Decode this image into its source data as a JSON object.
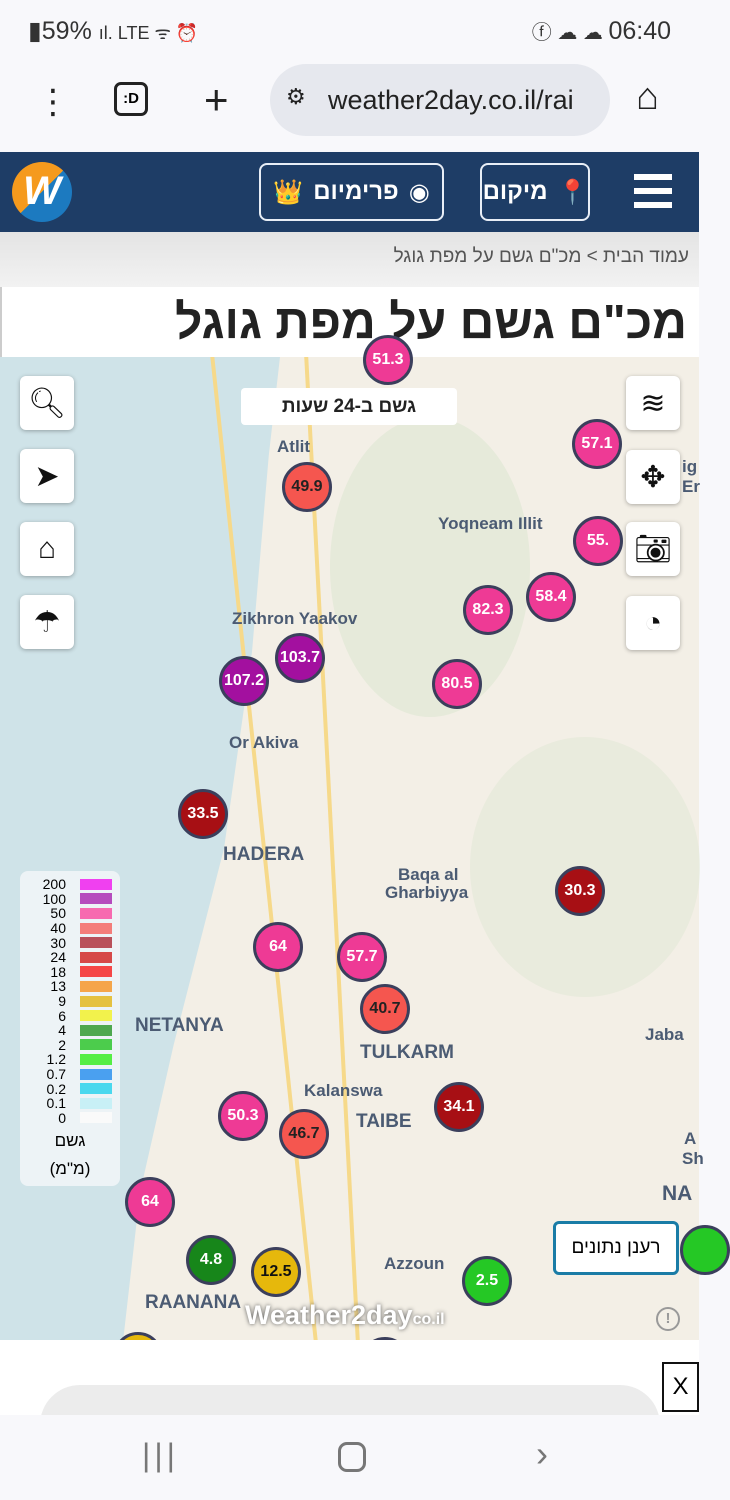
{
  "status": {
    "battery": "59%",
    "time": "06:40"
  },
  "browser": {
    "url": "weather2day.co.il/rai",
    "tab_icon": ":D"
  },
  "nav": {
    "location_label": "מיקום",
    "premium_label": "פרימיום",
    "logo_letter": "W"
  },
  "breadcrumb": {
    "home": "עמוד הבית",
    "separator": ">",
    "current": "מכ\"ם גשם על מפת גוגל"
  },
  "page_title": "מכ\"ם גשם על מפת גוגל",
  "map": {
    "period_label": "גשם ב-24 שעות",
    "refresh_label": "רענן נתונים",
    "watermark": "Weather2day",
    "watermark_suffix": "co.il",
    "places": [
      "Atlit",
      "Yoqneam Illit",
      "Zikhron Yaakov",
      "Or Akiva",
      "HADERA",
      "Baqa al",
      "Gharbiyya",
      "NETANYA",
      "TULKARM",
      "Kalanswa",
      "TAIBE",
      "Jaba",
      "RAANANA",
      "Azzoun",
      "NA",
      "ig",
      "Er",
      "A",
      "Sh"
    ],
    "markers": [
      {
        "value": "51.3",
        "color": "#ee3a95"
      },
      {
        "value": "57.1",
        "color": "#ee3a95"
      },
      {
        "value": "49.9",
        "color": "#f5564f"
      },
      {
        "value": "55.",
        "color": "#ee3a95"
      },
      {
        "value": "82.3",
        "color": "#ee3a95"
      },
      {
        "value": "58.4",
        "color": "#ee3a95"
      },
      {
        "value": "103.7",
        "color": "#a3109f"
      },
      {
        "value": "107.2",
        "color": "#a3109f"
      },
      {
        "value": "80.5",
        "color": "#ee3a95"
      },
      {
        "value": "33.5",
        "color": "#a70f14"
      },
      {
        "value": "30.3",
        "color": "#a70f14"
      },
      {
        "value": "64",
        "color": "#ee3a95"
      },
      {
        "value": "57.7",
        "color": "#ee3a95"
      },
      {
        "value": "40.7",
        "color": "#f5564f"
      },
      {
        "value": "50.3",
        "color": "#ee3a95"
      },
      {
        "value": "46.7",
        "color": "#f5564f"
      },
      {
        "value": "34.1",
        "color": "#a70f14"
      },
      {
        "value": "64",
        "color": "#ee3a95"
      },
      {
        "value": "4.8",
        "color": "#17861a"
      },
      {
        "value": "12.5",
        "color": "#e6b80c"
      },
      {
        "value": "2.5",
        "color": "#25c825"
      }
    ],
    "legend": {
      "title": "גשם",
      "unit": "(מ\"מ)",
      "items": [
        {
          "label": "200",
          "color": "#f040f0"
        },
        {
          "label": "100",
          "color": "#b64bbd"
        },
        {
          "label": "50",
          "color": "#f76ab0"
        },
        {
          "label": "40",
          "color": "#f47d7a"
        },
        {
          "label": "30",
          "color": "#b9505a"
        },
        {
          "label": "24",
          "color": "#d64848"
        },
        {
          "label": "18",
          "color": "#f54646"
        },
        {
          "label": "13",
          "color": "#f5a54a"
        },
        {
          "label": "9",
          "color": "#e5c140"
        },
        {
          "label": "6",
          "color": "#f2f24c"
        },
        {
          "label": "4",
          "color": "#4ea84e"
        },
        {
          "label": "2",
          "color": "#4ccc4c"
        },
        {
          "label": "1.2",
          "color": "#55ee44"
        },
        {
          "label": "0.7",
          "color": "#4aa0f0"
        },
        {
          "label": "0.2",
          "color": "#4ad8ee"
        },
        {
          "label": "0.1",
          "color": "#c8f0f6"
        },
        {
          "label": "0",
          "color": "#fafafa"
        }
      ]
    }
  },
  "footer": {
    "close_label": "X"
  }
}
